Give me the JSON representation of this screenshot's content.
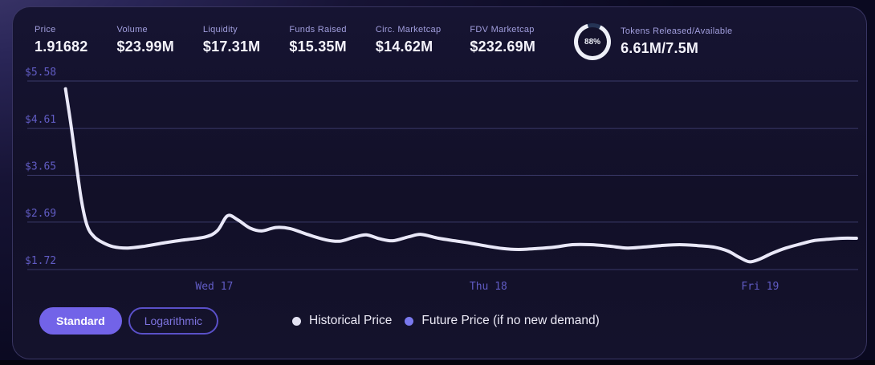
{
  "stats": [
    {
      "label": "Price",
      "value": "1.91682"
    },
    {
      "label": "Volume",
      "value": "$23.99M"
    },
    {
      "label": "Liquidity",
      "value": "$17.31M"
    },
    {
      "label": "Funds Raised",
      "value": "$15.35M"
    },
    {
      "label": "Circ. Marketcap",
      "value": "$14.62M"
    },
    {
      "label": "FDV Marketcap",
      "value": "$232.69M"
    }
  ],
  "token_stat": {
    "label": "Tokens Released/Available",
    "value": "6.61M/7.5M",
    "percent_text": "88%",
    "percent": 88
  },
  "controls": {
    "standard_label": "Standard",
    "logarithmic_label": "Logarithmic"
  },
  "legend": [
    {
      "label": "Historical Price",
      "color": "#e3e2f2"
    },
    {
      "label": "Future Price (if no new demand)",
      "color": "#7a79ee"
    }
  ],
  "colors": {
    "accent": "#7263e8",
    "line": "#e9e8f8",
    "grid": "#3a3969",
    "axis_text": "#615cc4",
    "stat_label": "#a29fde",
    "stat_value": "#f4f3fb",
    "card_bg": "#14122c",
    "ring_fill": "#eef0f8",
    "ring_track": "#253455"
  },
  "chart_data": {
    "type": "line",
    "title": "",
    "xlabel": "",
    "ylabel": "",
    "grid": true,
    "legend_position": "bottom",
    "ylim": [
      1.72,
      5.58
    ],
    "y_ticks": [
      "$5.58",
      "$4.61",
      "$3.65",
      "$2.69",
      "$1.72"
    ],
    "y_tick_values": [
      5.58,
      4.61,
      3.65,
      2.69,
      1.72
    ],
    "x_ticks": [
      "Wed 17",
      "Thu 18",
      "Fri 19"
    ],
    "x_tick_positions": [
      0.225,
      0.555,
      0.882
    ],
    "series": [
      {
        "name": "Historical Price",
        "color": "#e9e8f8",
        "points": [
          [
            0.046,
            5.42
          ],
          [
            0.052,
            4.75
          ],
          [
            0.058,
            4.0
          ],
          [
            0.065,
            3.15
          ],
          [
            0.072,
            2.62
          ],
          [
            0.08,
            2.4
          ],
          [
            0.09,
            2.28
          ],
          [
            0.103,
            2.19
          ],
          [
            0.121,
            2.16
          ],
          [
            0.142,
            2.2
          ],
          [
            0.166,
            2.27
          ],
          [
            0.19,
            2.33
          ],
          [
            0.215,
            2.39
          ],
          [
            0.229,
            2.52
          ],
          [
            0.241,
            2.82
          ],
          [
            0.253,
            2.74
          ],
          [
            0.268,
            2.57
          ],
          [
            0.282,
            2.51
          ],
          [
            0.299,
            2.58
          ],
          [
            0.316,
            2.56
          ],
          [
            0.337,
            2.44
          ],
          [
            0.359,
            2.33
          ],
          [
            0.376,
            2.3
          ],
          [
            0.393,
            2.38
          ],
          [
            0.408,
            2.43
          ],
          [
            0.424,
            2.35
          ],
          [
            0.44,
            2.31
          ],
          [
            0.459,
            2.39
          ],
          [
            0.474,
            2.44
          ],
          [
            0.495,
            2.36
          ],
          [
            0.514,
            2.31
          ],
          [
            0.533,
            2.26
          ],
          [
            0.553,
            2.2
          ],
          [
            0.572,
            2.15
          ],
          [
            0.591,
            2.13
          ],
          [
            0.614,
            2.15
          ],
          [
            0.635,
            2.18
          ],
          [
            0.656,
            2.23
          ],
          [
            0.678,
            2.23
          ],
          [
            0.7,
            2.2
          ],
          [
            0.722,
            2.16
          ],
          [
            0.741,
            2.18
          ],
          [
            0.762,
            2.21
          ],
          [
            0.785,
            2.23
          ],
          [
            0.807,
            2.21
          ],
          [
            0.826,
            2.18
          ],
          [
            0.843,
            2.1
          ],
          [
            0.857,
            1.97
          ],
          [
            0.869,
            1.88
          ],
          [
            0.881,
            1.93
          ],
          [
            0.896,
            2.05
          ],
          [
            0.913,
            2.16
          ],
          [
            0.93,
            2.24
          ],
          [
            0.946,
            2.31
          ],
          [
            0.963,
            2.34
          ],
          [
            0.981,
            2.36
          ],
          [
            0.998,
            2.36
          ]
        ]
      }
    ]
  }
}
